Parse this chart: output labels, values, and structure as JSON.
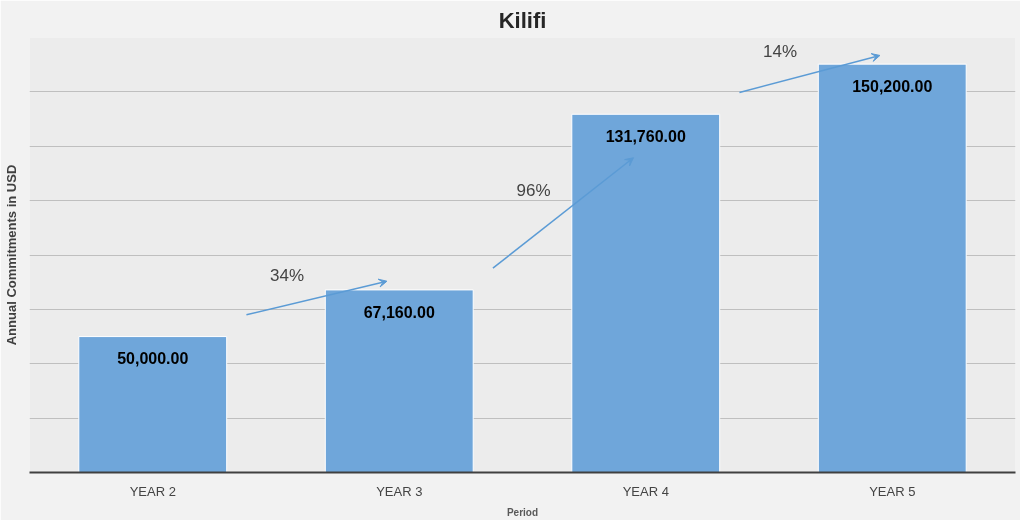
{
  "chart_data": {
    "type": "bar",
    "title": "Kilifi",
    "xlabel": "Period",
    "ylabel": "Annual Commitments in USD",
    "categories": [
      "YEAR 2",
      "YEAR 3",
      "YEAR 4",
      "YEAR 5"
    ],
    "values": [
      50000,
      67160,
      131760,
      150200
    ],
    "color": "#6fa6da",
    "value_labels": [
      "50,000.00",
      "67,160.00",
      "131,760.00",
      "150,200.00"
    ],
    "annotations": [
      "34%",
      "96%",
      "14%"
    ],
    "ylim": [
      0,
      160000
    ],
    "yticks": [
      {
        "value": 0,
        "label": null
      },
      {
        "value": 20000,
        "label": null
      },
      {
        "value": 40000,
        "label": null
      },
      {
        "value": 60000,
        "label": null
      },
      {
        "value": 80000,
        "label": null
      },
      {
        "value": 100000,
        "label": null
      },
      {
        "value": 120000,
        "label": null
      },
      {
        "value": 140000,
        "label": null
      },
      {
        "value": 160000,
        "label": null
      }
    ],
    "grid": "y",
    "tick_labels": "x"
  }
}
